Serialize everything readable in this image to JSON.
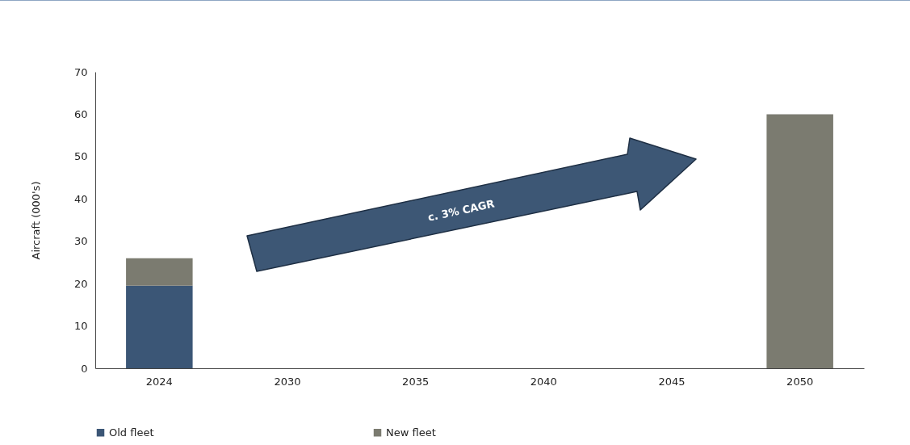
{
  "chart_data": {
    "type": "bar",
    "stacked": true,
    "ylabel": "Aircraft (000's)",
    "categories": [
      "2024",
      "2030",
      "2035",
      "2040",
      "2045",
      "2050"
    ],
    "series": [
      {
        "name": "Old fleet",
        "color": "#3b5676",
        "values": [
          19.5,
          null,
          null,
          null,
          null,
          null
        ]
      },
      {
        "name": "New fleet",
        "color": "#7b7b70",
        "values": [
          6.5,
          null,
          null,
          null,
          null,
          60
        ]
      }
    ],
    "ylim": [
      0,
      70
    ],
    "yticks": [
      0,
      10,
      20,
      30,
      40,
      50,
      60,
      70
    ],
    "grid": false,
    "legend": "bottom",
    "annotations": [
      "c. 3% CAGR"
    ]
  }
}
